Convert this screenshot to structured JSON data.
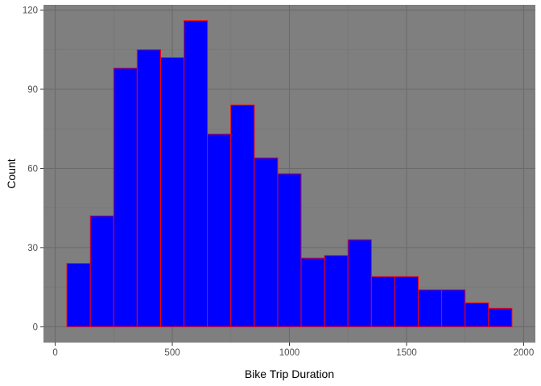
{
  "chart_data": {
    "type": "bar",
    "subtype": "histogram",
    "title": "",
    "xlabel": "Bike Trip Duration",
    "ylabel": "Count",
    "xlim": [
      -50,
      2050
    ],
    "ylim": [
      -6,
      122
    ],
    "x_ticks": [
      0,
      500,
      1000,
      1500,
      2000
    ],
    "x_tick_labels": [
      "0",
      "500",
      "1000",
      "1500",
      "2000"
    ],
    "y_ticks": [
      0,
      30,
      60,
      90,
      120
    ],
    "y_tick_labels": [
      "0",
      "30",
      "60",
      "90",
      "120"
    ],
    "grid": true,
    "legend": "none",
    "bins": [
      {
        "x0": 50,
        "x1": 150,
        "count": 24
      },
      {
        "x0": 150,
        "x1": 250,
        "count": 42
      },
      {
        "x0": 250,
        "x1": 350,
        "count": 98
      },
      {
        "x0": 350,
        "x1": 450,
        "count": 105
      },
      {
        "x0": 450,
        "x1": 550,
        "count": 102
      },
      {
        "x0": 550,
        "x1": 650,
        "count": 116
      },
      {
        "x0": 650,
        "x1": 750,
        "count": 73
      },
      {
        "x0": 750,
        "x1": 850,
        "count": 84
      },
      {
        "x0": 850,
        "x1": 950,
        "count": 64
      },
      {
        "x0": 950,
        "x1": 1050,
        "count": 58
      },
      {
        "x0": 1050,
        "x1": 1150,
        "count": 26
      },
      {
        "x0": 1150,
        "x1": 1250,
        "count": 27
      },
      {
        "x0": 1250,
        "x1": 1350,
        "count": 33
      },
      {
        "x0": 1350,
        "x1": 1450,
        "count": 19
      },
      {
        "x0": 1450,
        "x1": 1550,
        "count": 19
      },
      {
        "x0": 1550,
        "x1": 1650,
        "count": 14
      },
      {
        "x0": 1650,
        "x1": 1750,
        "count": 14
      },
      {
        "x0": 1750,
        "x1": 1850,
        "count": 9
      },
      {
        "x0": 1850,
        "x1": 1950,
        "count": 7
      }
    ],
    "colors": {
      "panel_background": "#7f7f7f",
      "grid_major": "#6b6b6b",
      "grid_minor": "#747474",
      "bar_fill": "#0000ff",
      "bar_outline": "#ff0000",
      "tick_mark": "#333333"
    }
  }
}
